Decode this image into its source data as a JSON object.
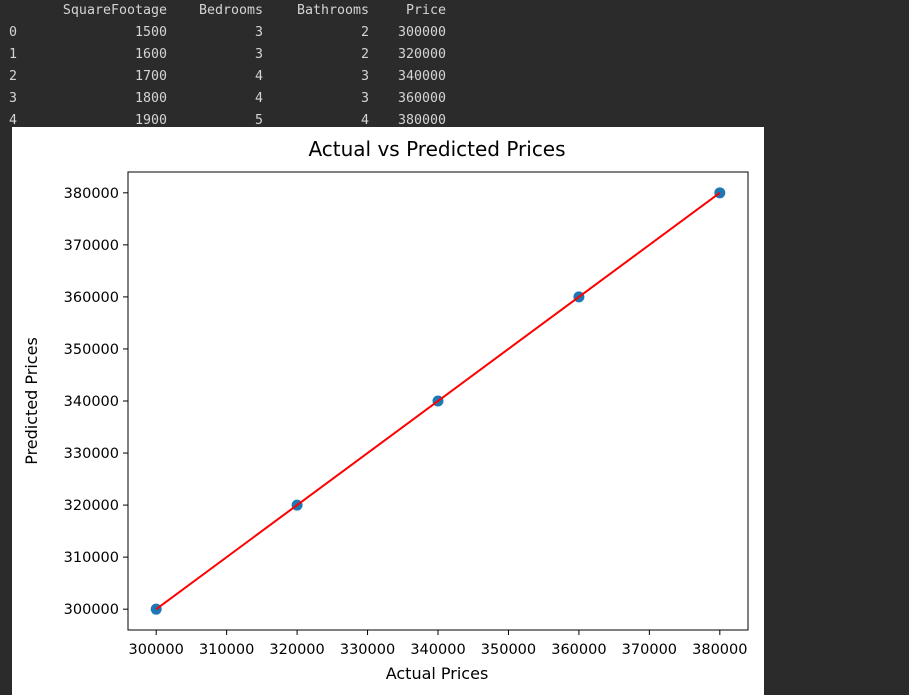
{
  "dataframe": {
    "columns": [
      "",
      "SquareFootage",
      "Bedrooms",
      "Bathrooms",
      "Price"
    ],
    "rows": [
      [
        "0",
        "1500",
        "3",
        "2",
        "300000"
      ],
      [
        "1",
        "1600",
        "3",
        "2",
        "320000"
      ],
      [
        "2",
        "1700",
        "4",
        "3",
        "340000"
      ],
      [
        "3",
        "1800",
        "4",
        "3",
        "360000"
      ],
      [
        "4",
        "1900",
        "5",
        "4",
        "380000"
      ]
    ]
  },
  "chart_data": {
    "type": "scatter",
    "title": "Actual vs Predicted Prices",
    "xlabel": "Actual Prices",
    "ylabel": "Predicted Prices",
    "xlim": [
      296000,
      384000
    ],
    "ylim": [
      296000,
      384000
    ],
    "x_ticks": [
      300000,
      310000,
      320000,
      330000,
      340000,
      350000,
      360000,
      370000,
      380000
    ],
    "y_ticks": [
      300000,
      310000,
      320000,
      330000,
      340000,
      350000,
      360000,
      370000,
      380000
    ],
    "series": [
      {
        "kind": "scatter",
        "x": [
          300000,
          320000,
          340000,
          360000,
          380000
        ],
        "y": [
          300000,
          320000,
          340000,
          360000,
          380000
        ],
        "color": "#1f77b4"
      },
      {
        "kind": "line",
        "x": [
          300000,
          380000
        ],
        "y": [
          300000,
          380000
        ],
        "color": "#ff0000"
      }
    ],
    "grid": false,
    "legend": "none"
  }
}
